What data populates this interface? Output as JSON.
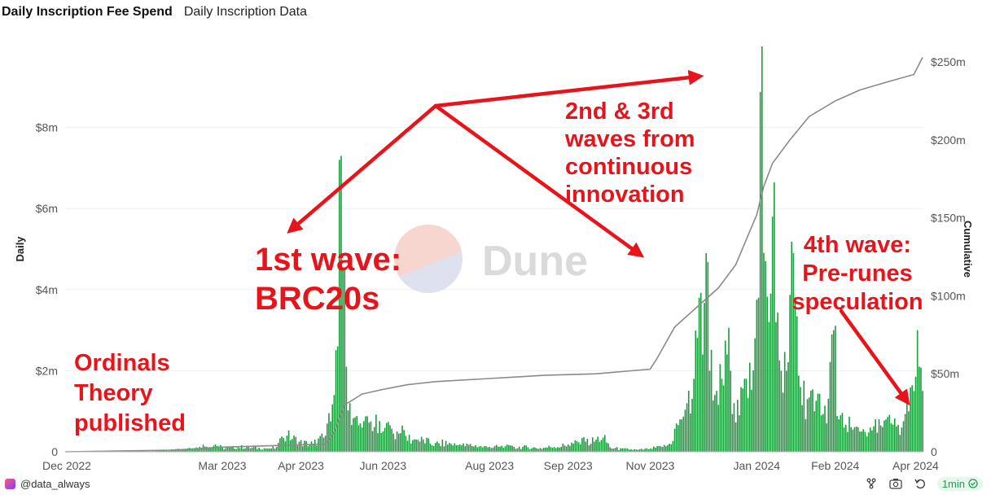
{
  "header": {
    "title": "Daily Inscription Fee Spend",
    "tab": "Daily Inscription Data"
  },
  "watermark": "Dune",
  "footer": {
    "author": "@data_always",
    "refresh": "1min"
  },
  "colors": {
    "bar": "#1a9b3c",
    "line": "#8a8a8a",
    "annotation": "#e8141b"
  },
  "chart_data": {
    "type": "bar",
    "ylabel": "Daily",
    "y2label": "Cumulative",
    "ylim": [
      0,
      10
    ],
    "y2lim": [
      0,
      260
    ],
    "y_ticks": [
      "0",
      "$2m",
      "$4m",
      "$6m",
      "$8m"
    ],
    "y2_ticks": [
      "0",
      "$50m",
      "$100m",
      "$150m",
      "$200m",
      "$250m"
    ],
    "x_ticks": [
      "Dec 2022",
      "Mar 2023",
      "Apr 2023",
      "Jun 2023",
      "Aug 2023",
      "Sep 2023",
      "Nov 2023",
      "Jan 2024",
      "Feb 2024",
      "Apr 2024"
    ],
    "x_range": [
      "2022-12-01",
      "2024-04-05"
    ],
    "grid": true,
    "daily_series": {
      "name": "Daily",
      "unit": "$m",
      "points": [
        [
          "2023-01-01",
          0.01
        ],
        [
          "2023-01-20",
          0.02
        ],
        [
          "2023-02-05",
          0.05
        ],
        [
          "2023-02-10",
          0.1
        ],
        [
          "2023-02-20",
          0.12
        ],
        [
          "2023-02-25",
          0.18
        ],
        [
          "2023-03-01",
          0.1
        ],
        [
          "2023-03-15",
          0.12
        ],
        [
          "2023-03-28",
          0.08
        ],
        [
          "2023-04-01",
          0.12
        ],
        [
          "2023-04-07",
          0.4
        ],
        [
          "2023-04-14",
          0.25
        ],
        [
          "2023-04-22",
          0.2
        ],
        [
          "2023-04-28",
          0.35
        ],
        [
          "2023-05-02",
          0.75
        ],
        [
          "2023-05-04",
          1.4
        ],
        [
          "2023-05-06",
          2.6
        ],
        [
          "2023-05-07",
          7.2
        ],
        [
          "2023-05-08",
          7.3
        ],
        [
          "2023-05-09",
          4.5
        ],
        [
          "2023-05-11",
          2.1
        ],
        [
          "2023-05-13",
          1.2
        ],
        [
          "2023-05-16",
          0.85
        ],
        [
          "2023-05-20",
          0.6
        ],
        [
          "2023-05-25",
          0.75
        ],
        [
          "2023-06-01",
          0.5
        ],
        [
          "2023-06-10",
          0.45
        ],
        [
          "2023-06-20",
          0.3
        ],
        [
          "2023-07-01",
          0.22
        ],
        [
          "2023-07-15",
          0.18
        ],
        [
          "2023-08-01",
          0.12
        ],
        [
          "2023-08-15",
          0.12
        ],
        [
          "2023-09-01",
          0.1
        ],
        [
          "2023-09-15",
          0.18
        ],
        [
          "2023-09-25",
          0.25
        ],
        [
          "2023-10-01",
          0.3
        ],
        [
          "2023-10-05",
          0.35
        ],
        [
          "2023-10-10",
          0.08
        ],
        [
          "2023-10-25",
          0.05
        ],
        [
          "2023-11-01",
          0.08
        ],
        [
          "2023-11-08",
          0.12
        ],
        [
          "2023-11-12",
          0.2
        ],
        [
          "2023-11-18",
          0.8
        ],
        [
          "2023-11-22",
          1.2
        ],
        [
          "2023-11-26",
          1.8
        ],
        [
          "2023-11-29",
          3.8
        ],
        [
          "2023-12-01",
          2.4
        ],
        [
          "2023-12-03",
          4.9
        ],
        [
          "2023-12-05",
          2.0
        ],
        [
          "2023-12-08",
          1.4
        ],
        [
          "2023-12-12",
          1.8
        ],
        [
          "2023-12-15",
          2.4
        ],
        [
          "2023-12-17",
          2.0
        ],
        [
          "2023-12-19",
          1.2
        ],
        [
          "2023-12-22",
          0.9
        ],
        [
          "2023-12-25",
          1.8
        ],
        [
          "2023-12-28",
          2.2
        ],
        [
          "2023-12-31",
          2.8
        ],
        [
          "2024-01-02",
          3.8
        ],
        [
          "2024-01-04",
          10.0
        ],
        [
          "2024-01-06",
          4.7
        ],
        [
          "2024-01-08",
          3.2
        ],
        [
          "2024-01-10",
          5.8
        ],
        [
          "2024-01-12",
          3.2
        ],
        [
          "2024-01-15",
          2.0
        ],
        [
          "2024-01-18",
          2.0
        ],
        [
          "2024-01-22",
          4.9
        ],
        [
          "2024-01-26",
          1.6
        ],
        [
          "2024-01-30",
          1.3
        ],
        [
          "2024-02-03",
          1.0
        ],
        [
          "2024-02-07",
          0.9
        ],
        [
          "2024-02-10",
          0.7
        ],
        [
          "2024-02-14",
          3.0
        ],
        [
          "2024-02-17",
          0.8
        ],
        [
          "2024-02-20",
          0.6
        ],
        [
          "2024-02-25",
          0.55
        ],
        [
          "2024-03-01",
          0.5
        ],
        [
          "2024-03-06",
          0.6
        ],
        [
          "2024-03-12",
          0.65
        ],
        [
          "2024-03-18",
          0.7
        ],
        [
          "2024-03-24",
          0.6
        ],
        [
          "2024-03-28",
          1.0
        ],
        [
          "2024-03-31",
          1.5
        ],
        [
          "2024-04-02",
          3.0
        ],
        [
          "2024-04-03",
          2.1
        ],
        [
          "2024-04-05",
          1.5
        ]
      ]
    },
    "cumulative_series": {
      "name": "Cumulative",
      "unit": "$m",
      "points": [
        [
          "2022-12-01",
          0
        ],
        [
          "2023-01-31",
          1
        ],
        [
          "2023-03-01",
          3
        ],
        [
          "2023-04-01",
          4
        ],
        [
          "2023-04-30",
          5
        ],
        [
          "2023-05-05",
          15
        ],
        [
          "2023-05-10",
          30
        ],
        [
          "2023-05-20",
          37
        ],
        [
          "2023-06-01",
          40
        ],
        [
          "2023-06-15",
          43
        ],
        [
          "2023-07-01",
          45
        ],
        [
          "2023-08-01",
          47
        ],
        [
          "2023-09-01",
          49
        ],
        [
          "2023-10-01",
          50
        ],
        [
          "2023-11-01",
          53
        ],
        [
          "2023-11-05",
          60
        ],
        [
          "2023-11-15",
          80
        ],
        [
          "2023-11-30",
          95
        ],
        [
          "2023-12-10",
          105
        ],
        [
          "2023-12-20",
          120
        ],
        [
          "2024-01-01",
          152
        ],
        [
          "2024-01-05",
          170
        ],
        [
          "2024-01-10",
          185
        ],
        [
          "2024-01-20",
          200
        ],
        [
          "2024-01-31",
          215
        ],
        [
          "2024-02-15",
          225
        ],
        [
          "2024-02-29",
          232
        ],
        [
          "2024-03-15",
          237
        ],
        [
          "2024-03-31",
          242
        ],
        [
          "2024-04-05",
          253
        ]
      ]
    },
    "annotations": [
      "Ordinals\nTheory\npublished",
      "1st wave:\nBRC20s",
      "2nd & 3rd\nwaves from\ncontinuous\ninnovation",
      "4th wave:\nPre-runes\nspeculation"
    ]
  }
}
